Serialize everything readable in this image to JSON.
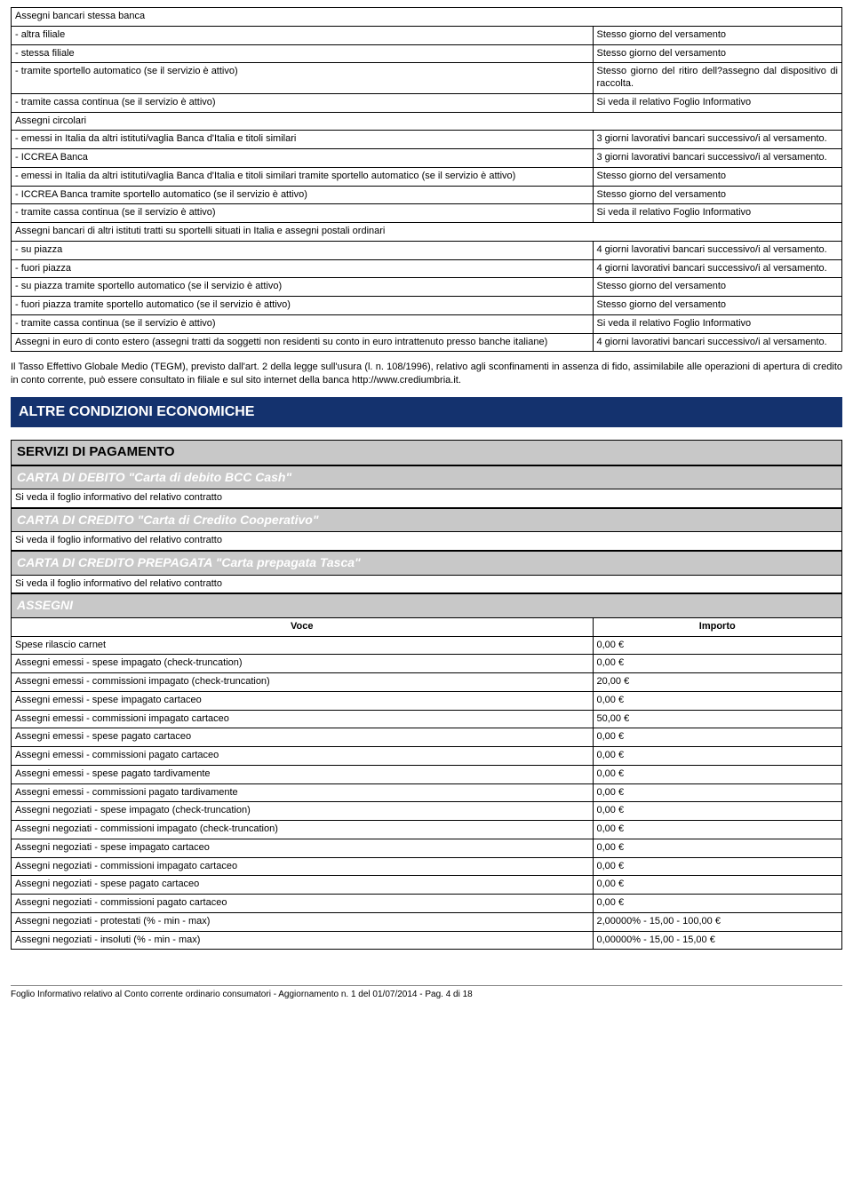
{
  "table1": {
    "rows": [
      {
        "left": "Assegni bancari stessa banca",
        "right": "",
        "fullrow": true
      },
      {
        "left": "- altra filiale",
        "right": "Stesso giorno del versamento"
      },
      {
        "left": "- stessa filiale",
        "right": "Stesso giorno del versamento"
      },
      {
        "left": "- tramite sportello automatico (se il servizio è attivo)",
        "right": "Stesso giorno del ritiro dell?assegno dal dispositivo di raccolta."
      },
      {
        "left": "- tramite cassa continua  (se il servizio è attivo)",
        "right": "Si veda il relativo Foglio Informativo"
      },
      {
        "left": "Assegni circolari",
        "right": "",
        "fullrow": true
      },
      {
        "left": "- emessi in Italia da altri istituti/vaglia Banca d'Italia e titoli similari",
        "right": "3 giorni lavorativi bancari successivo/i al versamento."
      },
      {
        "left": "- ICCREA Banca",
        "right": "3 giorni lavorativi bancari successivo/i al versamento."
      },
      {
        "left": "- emessi in Italia da altri istituti/vaglia Banca d'Italia e titoli similari tramite sportello automatico (se il servizio è attivo)",
        "right": "Stesso giorno del versamento"
      },
      {
        "left": "- ICCREA Banca tramite sportello automatico (se il servizio è attivo)",
        "right": "Stesso giorno del versamento"
      },
      {
        "left": "- tramite cassa continua (se il servizio è attivo)",
        "right": "Si veda il relativo Foglio Informativo"
      },
      {
        "left": "Assegni bancari di altri istituti tratti su sportelli situati in Italia e assegni postali ordinari",
        "right": "",
        "fullrow": true
      },
      {
        "left": "- su piazza",
        "right": "4 giorni lavorativi bancari successivo/i al versamento."
      },
      {
        "left": "- fuori piazza",
        "right": "4 giorni lavorativi bancari successivo/i al versamento."
      },
      {
        "left": "- su piazza tramite sportello automatico (se il servizio è attivo)",
        "right": "Stesso giorno del versamento"
      },
      {
        "left": "- fuori piazza tramite sportello automatico (se il servizio è attivo)",
        "right": "Stesso giorno del versamento"
      },
      {
        "left": "- tramite cassa continua (se il servizio è attivo)",
        "right": "Si veda il relativo Foglio Informativo"
      },
      {
        "left": "Assegni in euro di conto estero (assegni tratti da soggetti non residenti su conto in euro intrattenuto presso banche italiane)",
        "right": "4 giorni lavorativi bancari successivo/i al versamento."
      }
    ]
  },
  "paragraph": "Il Tasso Effettivo  Globale Medio (TEGM), previsto dall'art. 2 della legge sull'usura (l. n. 108/1996), relativo agli sconfinamenti in assenza di fido, assimilabile alle operazioni di apertura di credito in conto corrente, può essere consultato in filiale e sul sito internet della banca http://www.crediumbria.it.",
  "section_other": "ALTRE CONDIZIONI ECONOMICHE",
  "section_servizi": "SERVIZI DI PAGAMENTO",
  "cards": [
    {
      "title": "CARTA DI DEBITO \"Carta di debito BCC Cash\"",
      "note": "Si veda il foglio informativo del relativo contratto"
    },
    {
      "title": "CARTA DI CREDITO \"Carta di Credito Cooperativo\"",
      "note": "Si veda il foglio informativo del relativo contratto"
    },
    {
      "title": "CARTA DI CREDITO PREPAGATA \"Carta prepagata Tasca\"",
      "note": "Si veda il foglio informativo del relativo contratto"
    }
  ],
  "assegni_header": "ASSEGNI",
  "voce_label": "Voce",
  "importo_label": "Importo",
  "table2": {
    "rows": [
      {
        "left": "Spese rilascio carnet",
        "right": "0,00 €"
      },
      {
        "left": "Assegni emessi - spese impagato (check-truncation)",
        "right": "0,00 €"
      },
      {
        "left": "Assegni emessi - commissioni impagato (check-truncation)",
        "right": "20,00 €"
      },
      {
        "left": "Assegni emessi - spese impagato cartaceo",
        "right": "0,00 €"
      },
      {
        "left": "Assegni emessi - commissioni impagato cartaceo",
        "right": "50,00 €"
      },
      {
        "left": "Assegni emessi - spese pagato cartaceo",
        "right": "0,00 €"
      },
      {
        "left": "Assegni emessi - commissioni pagato cartaceo",
        "right": "0,00 €"
      },
      {
        "left": "Assegni emessi - spese pagato tardivamente",
        "right": "0,00 €"
      },
      {
        "left": "Assegni emessi - commissioni pagato tardivamente",
        "right": "0,00 €"
      },
      {
        "left": "Assegni negoziati - spese impagato (check-truncation)",
        "right": "0,00 €"
      },
      {
        "left": "Assegni negoziati - commissioni impagato (check-truncation)",
        "right": "0,00 €"
      },
      {
        "left": "Assegni negoziati - spese impagato cartaceo",
        "right": "0,00 €"
      },
      {
        "left": "Assegni negoziati - commissioni impagato cartaceo",
        "right": "0,00 €"
      },
      {
        "left": "Assegni negoziati - spese pagato cartaceo",
        "right": "0,00 €"
      },
      {
        "left": "Assegni negoziati - commissioni pagato cartaceo",
        "right": "0,00 €"
      },
      {
        "left": "Assegni negoziati - protestati (% - min - max)",
        "right": "2,00000% - 15,00 - 100,00 €"
      },
      {
        "left": "Assegni negoziati - insoluti (% - min - max)",
        "right": "0,00000% - 15,00 - 15,00 €"
      }
    ]
  },
  "footer": "Foglio Informativo relativo al  Conto corrente ordinario consumatori - Aggiornamento n. 1 del 01/07/2014 - Pag. 4 di 18"
}
